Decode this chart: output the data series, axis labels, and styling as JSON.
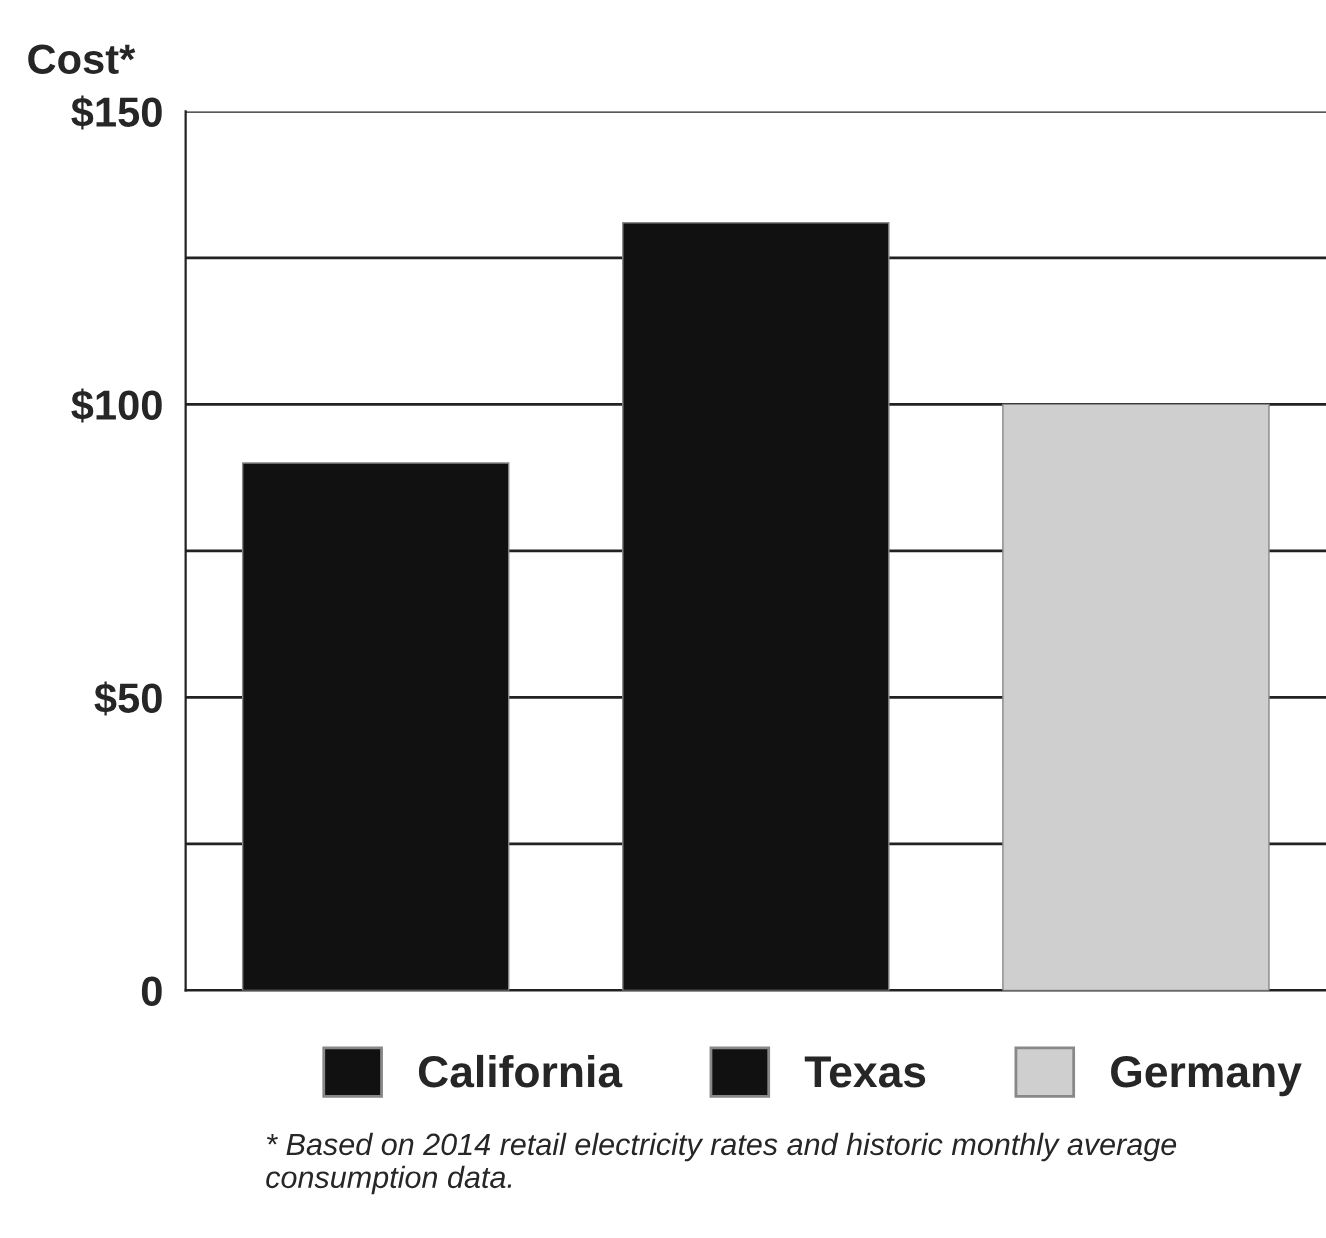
{
  "chart_data": {
    "type": "bar",
    "ylabel": "Cost*",
    "categories": [
      null,
      null,
      null
    ],
    "series": [
      {
        "name": "California",
        "color": "#111111",
        "values": [
          90,
          null,
          null
        ]
      },
      {
        "name": "Texas",
        "color": "#111111",
        "values": [
          null,
          131,
          null
        ]
      },
      {
        "name": "Germany",
        "color": "#cfcfcf",
        "values": [
          null,
          null,
          100
        ]
      }
    ],
    "ylim": [
      0,
      150
    ],
    "yticks": [
      {
        "value": 0,
        "label": "0"
      },
      {
        "value": 25,
        "label": null
      },
      {
        "value": 50,
        "label": "$50"
      },
      {
        "value": 75,
        "label": null
      },
      {
        "value": 100,
        "label": "$100"
      },
      {
        "value": 125,
        "label": null
      },
      {
        "value": 150,
        "label": "$150"
      }
    ],
    "grid": "y",
    "legend": "bottom",
    "annotations": [
      "* Based on 2014 retail electricity rates and historic monthly average consumption data."
    ]
  }
}
